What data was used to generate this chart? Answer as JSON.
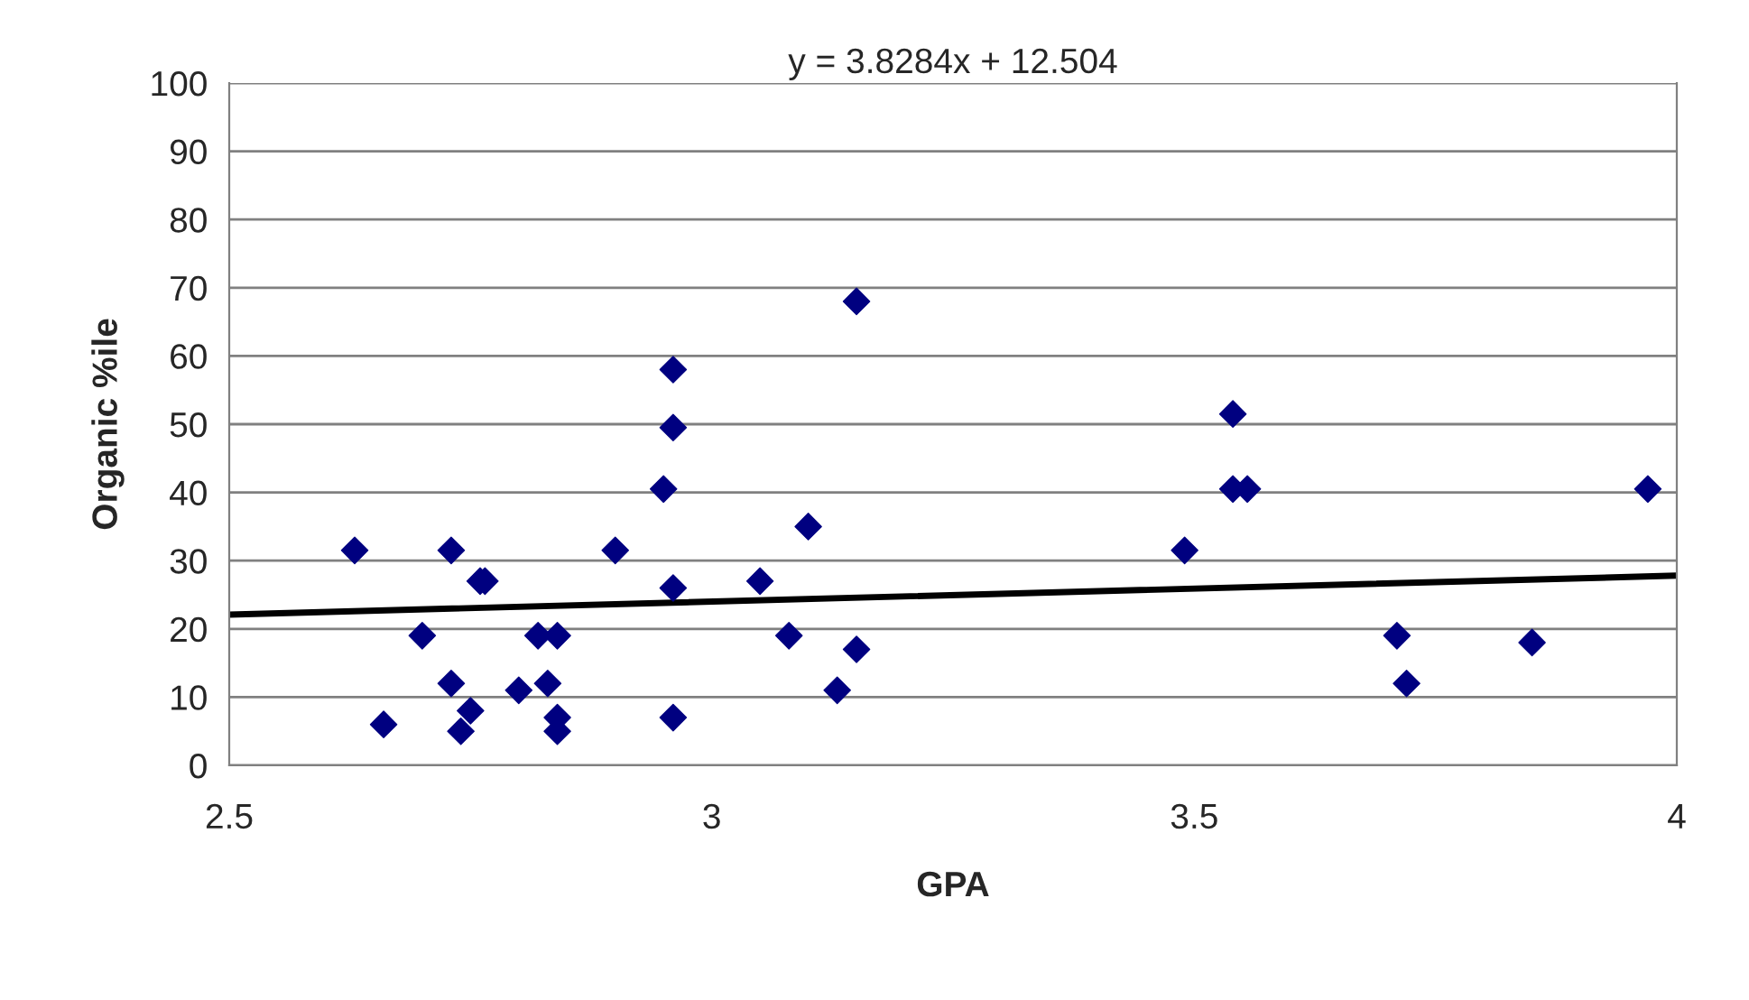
{
  "chart_data": {
    "type": "scatter",
    "title": "y = 3.8284x + 12.504",
    "xlabel": "GPA",
    "ylabel": "Organic %ile",
    "xlim": [
      2.5,
      4
    ],
    "xticks": [
      2.5,
      3,
      3.5,
      4
    ],
    "ylim": [
      0,
      100
    ],
    "yticks": [
      0,
      10,
      20,
      30,
      40,
      50,
      60,
      70,
      80,
      90,
      100
    ],
    "grid": "y",
    "legend": false,
    "series": [
      {
        "color": "#000080",
        "marker": "diamond",
        "x": [
          2.63,
          2.66,
          2.7,
          2.73,
          2.73,
          2.74,
          2.75,
          2.76,
          2.765,
          2.8,
          2.82,
          2.83,
          2.84,
          2.84,
          2.84,
          2.9,
          2.95,
          2.96,
          2.96,
          2.96,
          2.96,
          3.05,
          3.08,
          3.1,
          3.13,
          3.15,
          3.15,
          3.49,
          3.54,
          3.54,
          3.555,
          3.71,
          3.72,
          3.85,
          3.97
        ],
        "values": [
          31.5,
          6,
          19,
          12,
          31.5,
          5,
          8,
          27,
          27,
          11,
          19,
          12,
          19,
          7,
          5,
          31.5,
          40.5,
          49.5,
          58,
          26,
          7,
          27,
          19,
          35,
          11,
          68,
          17,
          31.5,
          40.5,
          51.5,
          40.5,
          19,
          12,
          18,
          40.5
        ]
      },
      {
        "type": "line",
        "color": "#000000",
        "x": [
          2.5,
          4
        ],
        "values": [
          22.1,
          27.8
        ]
      }
    ]
  }
}
